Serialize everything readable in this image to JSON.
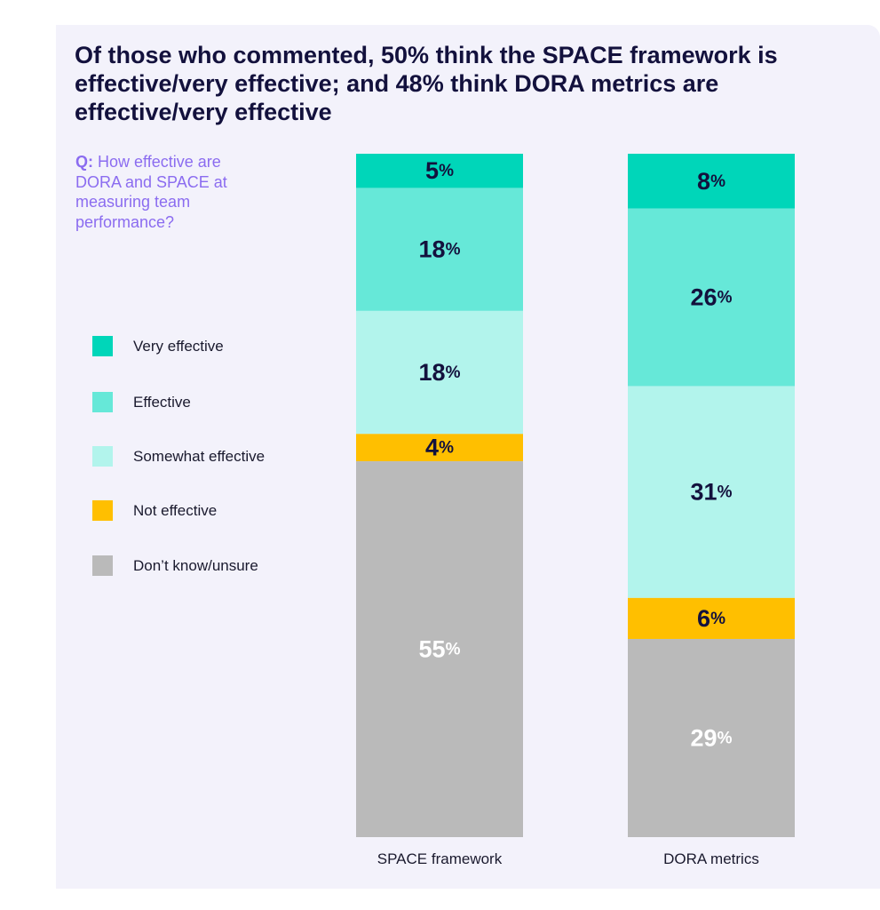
{
  "title": "Of those who commented, 50% think the SPACE framework is effective/very effective; and 48% think DORA metrics are effective/very effective",
  "question": {
    "prefix": "Q:",
    "text": "How effective are DORA and SPACE at measuring team performance?"
  },
  "colors": {
    "panel_bg": "#f3f2fb",
    "title": "#13113d",
    "question": "#8b6cf0",
    "label_dark": "#13113d",
    "label_light": "#ffffff"
  },
  "chart_data": {
    "type": "bar",
    "stacked": true,
    "orientation": "vertical",
    "categories": [
      "SPACE framework",
      "DORA metrics"
    ],
    "series": [
      {
        "name": "Very effective",
        "color": "#00d6b9",
        "values": [
          5,
          8
        ]
      },
      {
        "name": "Effective",
        "color": "#66e8d8",
        "values": [
          18,
          26
        ]
      },
      {
        "name": "Somewhat effective",
        "color": "#b2f4ec",
        "values": [
          18,
          31
        ]
      },
      {
        "name": "Not effective",
        "color": "#ffbf00",
        "values": [
          4,
          6
        ]
      },
      {
        "name": "Don’t know/unsure",
        "color": "#bababa",
        "values": [
          55,
          29
        ]
      }
    ],
    "value_suffix": "%",
    "legend_position": "left",
    "grid": false,
    "axes_visible": false
  }
}
